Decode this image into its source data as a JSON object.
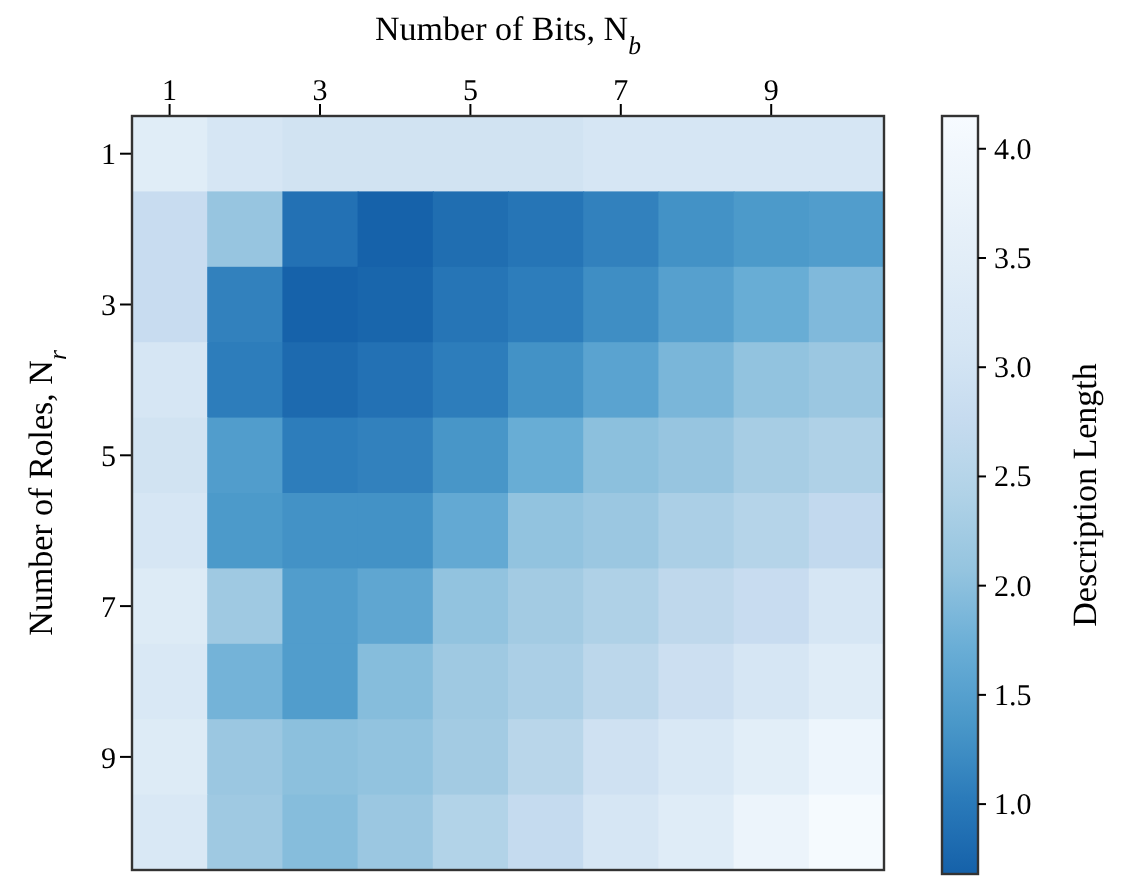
{
  "chart_data": {
    "type": "heatmap",
    "xlabel": "Number of Bits, N$_{b}$",
    "ylabel": "Number of Roles, N$_{r}$",
    "clabel": "Description Length",
    "categories": [
      "1",
      null,
      "3",
      null,
      "5",
      null,
      "7",
      null,
      "9",
      null
    ],
    "y_categories": [
      "1",
      null,
      "3",
      null,
      "5",
      null,
      "7",
      null,
      "9",
      null
    ],
    "cells": [
      [
        3.45,
        3.1,
        3.0,
        3.0,
        3.0,
        3.0,
        3.1,
        3.1,
        3.1,
        3.1
      ],
      [
        2.8,
        2.1,
        0.9,
        0.7,
        0.85,
        0.95,
        1.1,
        1.3,
        1.4,
        1.45
      ],
      [
        2.8,
        1.1,
        0.7,
        0.75,
        0.95,
        1.05,
        1.25,
        1.5,
        1.7,
        1.9
      ],
      [
        3.1,
        1.05,
        0.8,
        0.9,
        1.05,
        1.3,
        1.55,
        1.85,
        2.05,
        2.15
      ],
      [
        3.0,
        1.45,
        1.05,
        1.1,
        1.35,
        1.7,
        2.0,
        2.1,
        2.3,
        2.4
      ],
      [
        3.1,
        1.4,
        1.3,
        1.3,
        1.65,
        2.05,
        2.15,
        2.35,
        2.5,
        2.7
      ],
      [
        3.35,
        2.2,
        1.45,
        1.6,
        2.05,
        2.25,
        2.4,
        2.65,
        2.8,
        3.1
      ],
      [
        3.2,
        1.8,
        1.45,
        1.95,
        2.2,
        2.35,
        2.6,
        2.9,
        3.1,
        3.4
      ],
      [
        3.35,
        2.15,
        2.0,
        2.05,
        2.25,
        2.55,
        2.95,
        3.2,
        3.5,
        3.85
      ],
      [
        3.2,
        2.2,
        1.95,
        2.15,
        2.45,
        2.75,
        3.1,
        3.4,
        3.8,
        4.1
      ]
    ],
    "clim": [
      0.68,
      4.15
    ],
    "cticks": [
      {
        "value": 1,
        "label": "1.0"
      },
      1.5,
      {
        "value": 2,
        "label": "2.0"
      },
      2.5,
      {
        "value": 3,
        "label": "3.0"
      },
      3.5,
      {
        "value": 4,
        "label": "4.0"
      }
    ]
  }
}
